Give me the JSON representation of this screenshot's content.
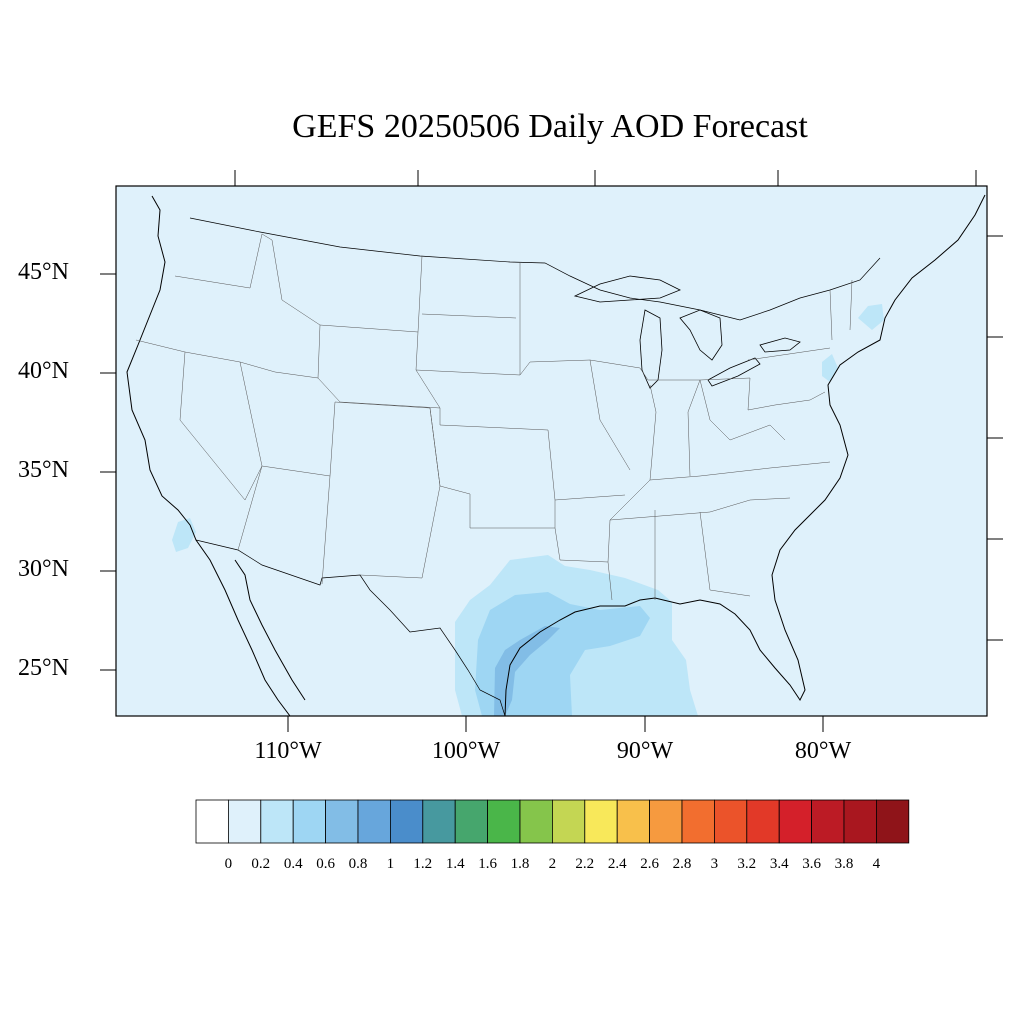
{
  "title": "GEFS 20250506 Daily AOD Forecast",
  "map": {
    "background": "#dff1fb",
    "border_color": "#000000",
    "lat_labels": [
      "45°N",
      "40°N",
      "35°N",
      "30°N",
      "25°N"
    ],
    "lon_labels": [
      "110°W",
      "100°W",
      "90°W",
      "80°W"
    ]
  },
  "colorbar": {
    "labels": [
      "0",
      "0.2",
      "0.4",
      "0.6",
      "0.8",
      "1",
      "1.2",
      "1.4",
      "1.6",
      "1.8",
      "2",
      "2.2",
      "2.4",
      "2.6",
      "2.8",
      "3",
      "3.2",
      "3.4",
      "3.6",
      "3.8",
      "4"
    ],
    "colors": [
      "#ffffff",
      "#dff1fb",
      "#bde6f8",
      "#9ed6f3",
      "#82bde6",
      "#67a6dc",
      "#4a8dcb",
      "#47999f",
      "#46a66d",
      "#4ab649",
      "#85c54b",
      "#c4d653",
      "#f8e85a",
      "#f8c04b",
      "#f69a3f",
      "#f26e2f",
      "#eb532a",
      "#e23928",
      "#d4202a",
      "#bc1b25",
      "#a9171f",
      "#8f1419"
    ]
  },
  "aod_field": {
    "gulf_plume_levels": [
      "0.4",
      "0.6",
      "0.8"
    ]
  }
}
